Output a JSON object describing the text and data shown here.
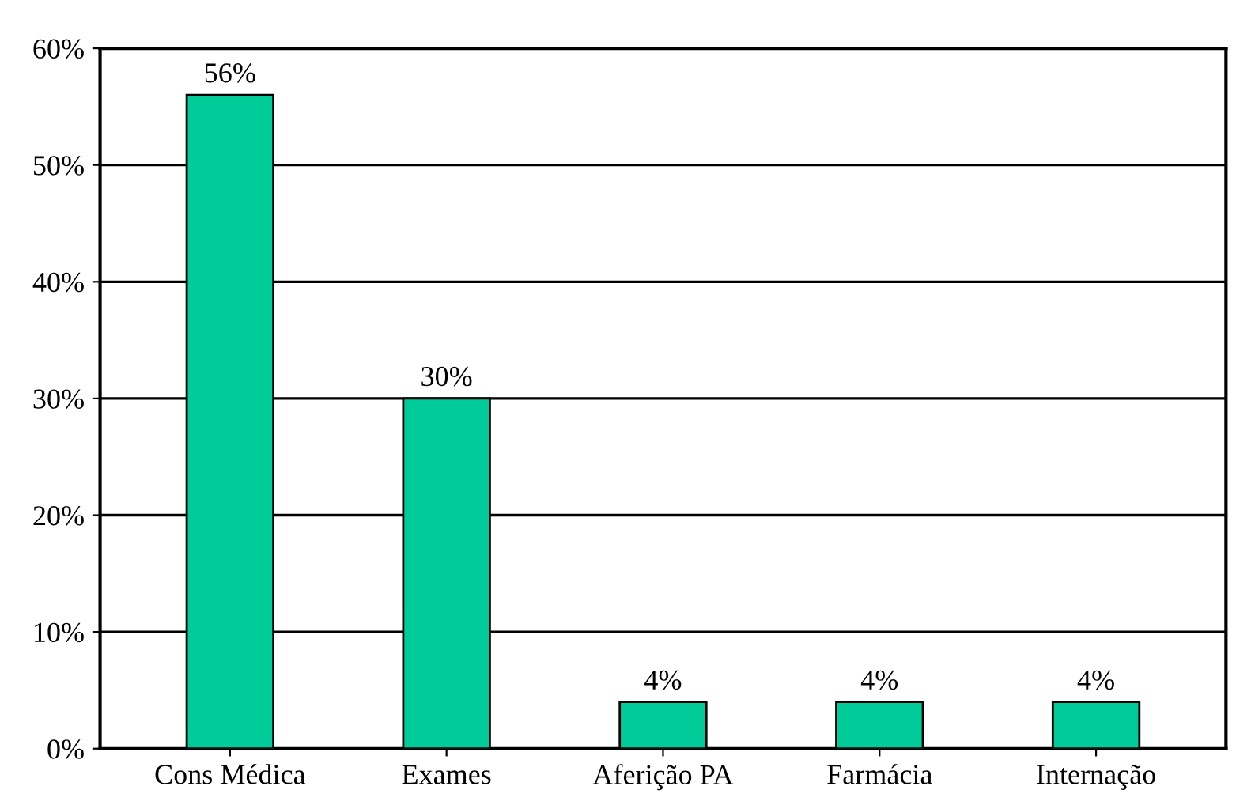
{
  "chart_data": {
    "type": "bar",
    "categories": [
      "Cons Médica",
      "Exames",
      "Aferição PA",
      "Farmácia",
      "Internação"
    ],
    "values": [
      56,
      30,
      4,
      4,
      4
    ],
    "value_labels": [
      "56%",
      "30%",
      "4%",
      "4%",
      "4%"
    ],
    "color": "#00cc99",
    "ylim": [
      0,
      60
    ],
    "yticks": [
      {
        "value": 0,
        "label": "0%"
      },
      {
        "value": 10,
        "label": "10%"
      },
      {
        "value": 20,
        "label": "20%"
      },
      {
        "value": 30,
        "label": "30%"
      },
      {
        "value": 40,
        "label": "40%"
      },
      {
        "value": 50,
        "label": "50%"
      },
      {
        "value": 60,
        "label": "60%"
      }
    ],
    "grid": "y",
    "legend": false
  }
}
